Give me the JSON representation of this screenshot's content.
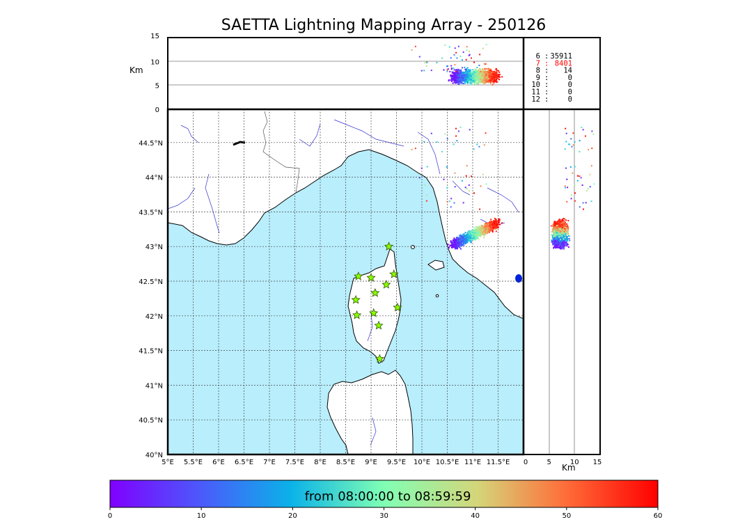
{
  "title": "SAETTA Lightning Mapping Array - 250126",
  "top_panel": {
    "ylabel": "Km",
    "yticks": [
      "15",
      "10",
      "5",
      "0"
    ],
    "yrange": [
      0,
      15
    ]
  },
  "side_panel": {
    "xlabel": "Km",
    "xticks": [
      "0",
      "5",
      "10",
      "15"
    ],
    "xrange": [
      0,
      15
    ]
  },
  "map": {
    "lon_range": [
      5,
      12.5
    ],
    "lat_range": [
      40,
      45
    ],
    "lon_ticks": [
      "5°E",
      "5.5°E",
      "6°E",
      "6.5°E",
      "7°E",
      "7.5°E",
      "8°E",
      "8.5°E",
      "9°E",
      "9.5°E",
      "10°E",
      "10.5°E",
      "11°E",
      "11.5°E"
    ],
    "lat_ticks": [
      "44.5°N",
      "44°N",
      "43.5°N",
      "43°N",
      "42.5°N",
      "42°N",
      "41.5°N",
      "41°N",
      "40.5°N",
      "40°N"
    ],
    "sea_color": "#b9eefc",
    "land_color": "#ffffff",
    "river_color": "#3333cc",
    "station_color": "#88ff00",
    "stations": [
      {
        "lon": 9.35,
        "lat": 43.0
      },
      {
        "lon": 8.75,
        "lat": 42.57
      },
      {
        "lon": 9.0,
        "lat": 42.55
      },
      {
        "lon": 9.45,
        "lat": 42.6
      },
      {
        "lon": 9.3,
        "lat": 42.45
      },
      {
        "lon": 9.08,
        "lat": 42.33
      },
      {
        "lon": 8.7,
        "lat": 42.23
      },
      {
        "lon": 9.52,
        "lat": 42.12
      },
      {
        "lon": 9.05,
        "lat": 42.04
      },
      {
        "lon": 8.72,
        "lat": 42.01
      },
      {
        "lon": 9.15,
        "lat": 41.86
      },
      {
        "lon": 9.17,
        "lat": 41.38
      }
    ]
  },
  "counts": [
    {
      "n": "6",
      "v": "35911",
      "color": "#000000"
    },
    {
      "n": "7",
      "v": "8401",
      "color": "#ff0000"
    },
    {
      "n": "8",
      "v": "14",
      "color": "#000000"
    },
    {
      "n": "9",
      "v": "0",
      "color": "#000000"
    },
    {
      "n": "10",
      "v": "0",
      "color": "#000000"
    },
    {
      "n": "11",
      "v": "0",
      "color": "#000000"
    },
    {
      "n": "12",
      "v": "0",
      "color": "#000000"
    }
  ],
  "colorbar": {
    "label": "from 08:00:00 to 08:59:59",
    "ticks": [
      "0",
      "10",
      "20",
      "30",
      "40",
      "50",
      "60"
    ],
    "range": [
      0,
      60
    ],
    "colormap": "rainbow"
  }
}
